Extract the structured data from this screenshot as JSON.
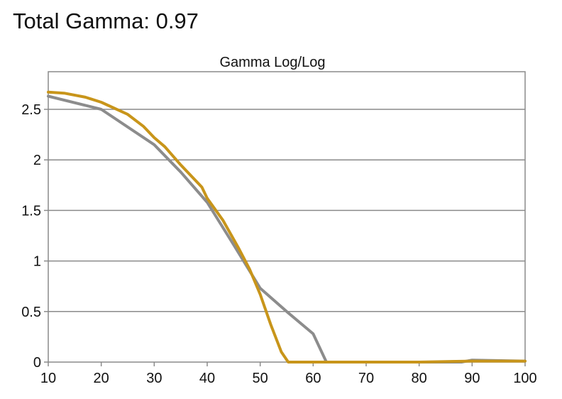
{
  "header": {
    "label": "Total Gamma:",
    "value": "0.97"
  },
  "chart_data": {
    "type": "line",
    "title": "Gamma Log/Log",
    "xlabel": "",
    "ylabel": "",
    "xlim": [
      10,
      100
    ],
    "ylim": [
      0,
      2.8
    ],
    "x_ticks": [
      "10",
      "20",
      "30",
      "40",
      "50",
      "60",
      "70",
      "80",
      "90",
      "100"
    ],
    "y_ticks": [
      "0",
      "0.5",
      "1",
      "1.5",
      "2",
      "2.5"
    ],
    "grid": "horizontal",
    "legend": "none",
    "series": [
      {
        "color": "#8c8c8c",
        "points": [
          [
            10,
            2.63
          ],
          [
            20,
            2.5
          ],
          [
            30,
            2.15
          ],
          [
            35,
            1.88
          ],
          [
            40,
            1.58
          ],
          [
            45,
            1.16
          ],
          [
            50,
            0.73
          ],
          [
            55,
            0.5
          ],
          [
            60,
            0.28
          ],
          [
            62.5,
            0
          ],
          [
            70,
            0
          ],
          [
            80,
            0
          ],
          [
            88,
            0
          ],
          [
            90,
            0.02
          ],
          [
            100,
            0.01
          ]
        ]
      },
      {
        "color": "#c8951a",
        "points": [
          [
            10,
            2.67
          ],
          [
            13,
            2.66
          ],
          [
            17,
            2.62
          ],
          [
            20,
            2.57
          ],
          [
            25,
            2.45
          ],
          [
            28,
            2.33
          ],
          [
            30,
            2.22
          ],
          [
            32,
            2.13
          ],
          [
            35,
            1.95
          ],
          [
            39,
            1.73
          ],
          [
            40,
            1.62
          ],
          [
            43,
            1.4
          ],
          [
            46,
            1.12
          ],
          [
            48,
            0.92
          ],
          [
            50,
            0.67
          ],
          [
            52,
            0.37
          ],
          [
            54,
            0.1
          ],
          [
            55.3,
            0
          ],
          [
            70,
            0
          ],
          [
            80,
            0
          ],
          [
            90,
            0.01
          ],
          [
            100,
            0.01
          ]
        ]
      }
    ]
  }
}
